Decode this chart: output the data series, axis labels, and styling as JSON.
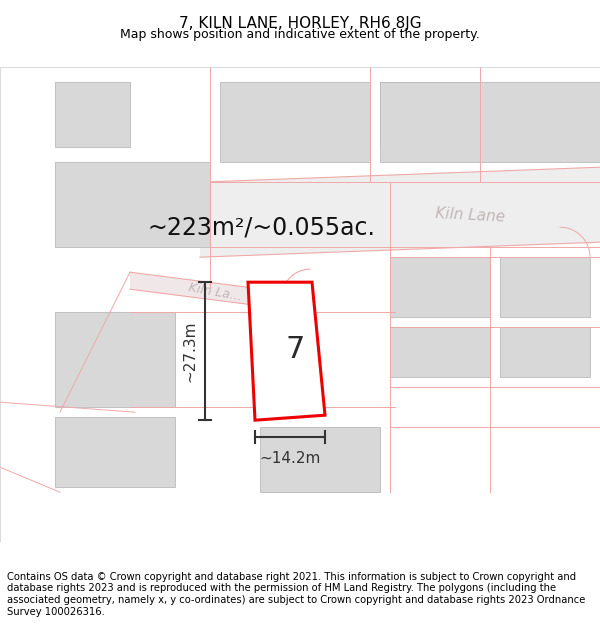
{
  "title": "7, KILN LANE, HORLEY, RH6 8JG",
  "subtitle": "Map shows position and indicative extent of the property.",
  "footer": "Contains OS data © Crown copyright and database right 2021. This information is subject to Crown copyright and database rights 2023 and is reproduced with the permission of HM Land Registry. The polygons (including the associated geometry, namely x, y co-ordinates) are subject to Crown copyright and database rights 2023 Ordnance Survey 100026316.",
  "area_label": "~223m²/~0.055ac.",
  "width_label": "~14.2m",
  "height_label": "~27.3m",
  "plot_number": "7",
  "map_bg": "#ffffff",
  "building_fill": "#d8d8d8",
  "building_edge": "#bbbbbb",
  "road_line_color": "#f0a8a8",
  "plot_outline_color": "#ee0000",
  "plot_fill": "#ffffff",
  "dim_color": "#333333",
  "road_label_color": "#b8b0b0",
  "kiln_lane_upper_label_color": "#c0b8b8",
  "kiln_lane_lower_label_color": "#c0b8b8",
  "title_fontsize": 11,
  "subtitle_fontsize": 9,
  "footer_fontsize": 7.2,
  "area_fontsize": 17,
  "dim_fontsize": 11,
  "road_label_fontsize": 11,
  "plot_num_fontsize": 22
}
